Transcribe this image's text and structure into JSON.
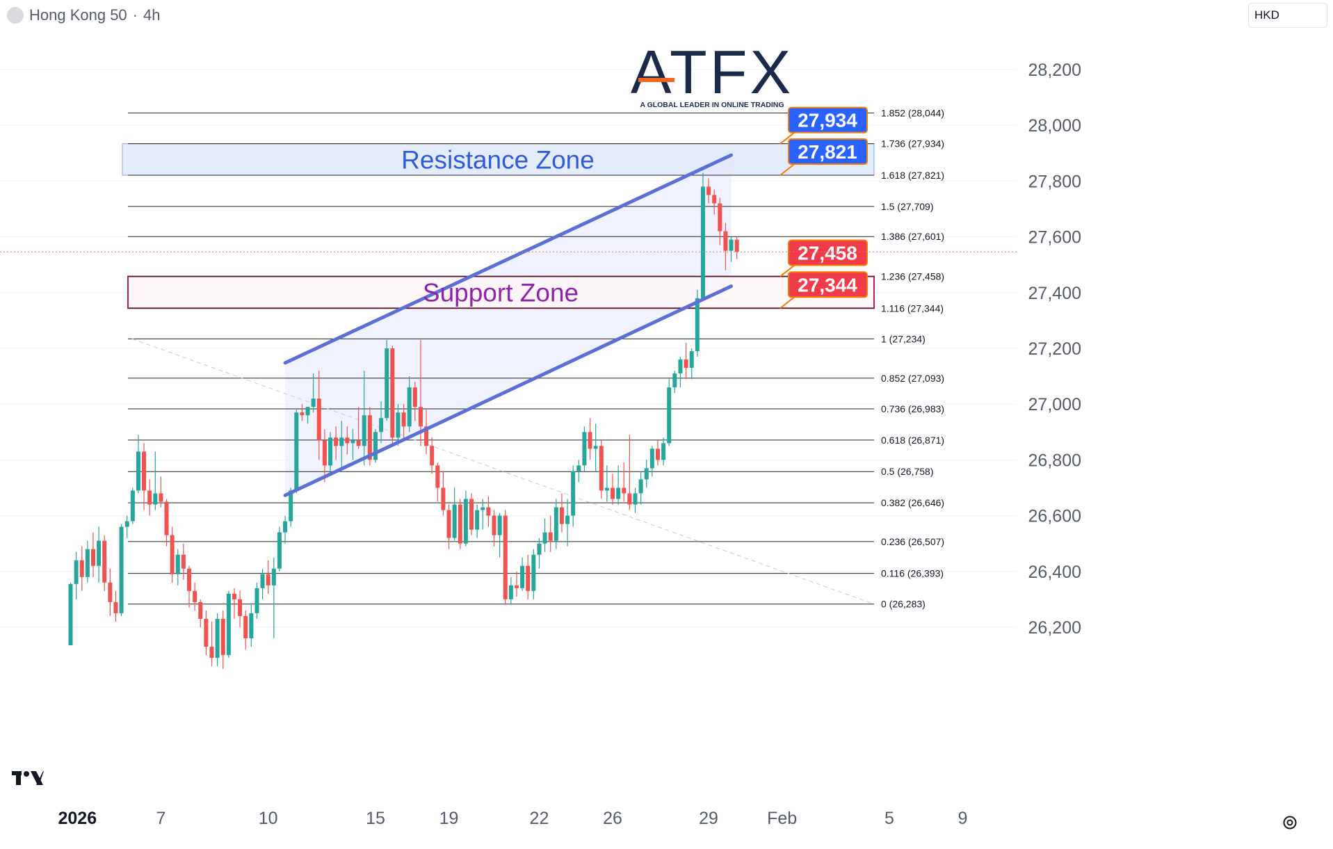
{
  "header": {
    "symbol": "Hong Kong 50",
    "separator": "·",
    "timeframe": "4h",
    "currency": "HKD"
  },
  "logo": {
    "brand": "ATFX",
    "tagline": "A GLOBAL LEADER IN ONLINE TRADING",
    "accent_color": "#f26522",
    "brand_color": "#1c2a4a"
  },
  "colors": {
    "up": "#26a69a",
    "down": "#ef5350",
    "channel": "#5b6fd6",
    "resistance_label": "#2962ff",
    "support_label": "#ef3b4a",
    "label_border": "#f57c00"
  },
  "zones": {
    "resistance_label": "Resistance Zone",
    "support_label": "Support Zone"
  },
  "price_tags": [
    "27,934",
    "27,821",
    "27,458",
    "27,344"
  ],
  "chart_data": {
    "type": "candlestick",
    "title": "Hong Kong 50 · 4h",
    "currency": "HKD",
    "ylim": [
      26100,
      28300
    ],
    "y_ticks": [
      "26,200",
      "26,400",
      "26,600",
      "26,800",
      "27,000",
      "27,200",
      "27,400",
      "27,600",
      "27,800",
      "28,000",
      "28,200"
    ],
    "y_tick_values": [
      26200,
      26400,
      26600,
      26800,
      27000,
      27200,
      27400,
      27600,
      27800,
      28000,
      28200
    ],
    "x_ticks": [
      "2026",
      "7",
      "10",
      "15",
      "19",
      "22",
      "26",
      "29",
      "Feb",
      "5",
      "9"
    ],
    "x_tick_bars": [
      0,
      16,
      35,
      54,
      67,
      83,
      96,
      113,
      126,
      145,
      158
    ],
    "fib_levels": [
      {
        "label": "1.852 (28,044)",
        "value": 28044
      },
      {
        "label": "1.736 (27,934)",
        "value": 27934
      },
      {
        "label": "1.618 (27,821)",
        "value": 27821
      },
      {
        "label": "1.5 (27,709)",
        "value": 27709
      },
      {
        "label": "1.386 (27,601)",
        "value": 27601
      },
      {
        "label": "1.236 (27,458)",
        "value": 27458
      },
      {
        "label": "1.116 (27,344)",
        "value": 27344
      },
      {
        "label": "1 (27,234)",
        "value": 27234
      },
      {
        "label": "0.852 (27,093)",
        "value": 27093
      },
      {
        "label": "0.736 (26,983)",
        "value": 26983
      },
      {
        "label": "0.618 (26,871)",
        "value": 26871
      },
      {
        "label": "0.5 (26,758)",
        "value": 26758
      },
      {
        "label": "0.382 (26,646)",
        "value": 26646
      },
      {
        "label": "0.236 (26,507)",
        "value": 26507
      },
      {
        "label": "0.116 (26,393)",
        "value": 26393
      },
      {
        "label": "0 (26,283)",
        "value": 26283
      }
    ],
    "resistance_zone": [
      27821,
      27934
    ],
    "support_zone": [
      27344,
      27458
    ],
    "channel": {
      "upper": [
        {
          "bar": 38,
          "price": 27148
        },
        {
          "bar": 117,
          "price": 27893
        }
      ],
      "lower": [
        {
          "bar": 38,
          "price": 26673
        },
        {
          "bar": 117,
          "price": 27423
        }
      ]
    },
    "current_price": 27546,
    "candles": [
      [
        26135,
        26360,
        26135,
        26355
      ],
      [
        26355,
        26470,
        26300,
        26440
      ],
      [
        26440,
        26490,
        26330,
        26380
      ],
      [
        26380,
        26510,
        26360,
        26480
      ],
      [
        26480,
        26540,
        26380,
        26420
      ],
      [
        26420,
        26560,
        26360,
        26510
      ],
      [
        26510,
        26530,
        26330,
        26360
      ],
      [
        26360,
        26410,
        26240,
        26290
      ],
      [
        26290,
        26330,
        26220,
        26250
      ],
      [
        26250,
        26570,
        26240,
        26560
      ],
      [
        26560,
        26600,
        26520,
        26580
      ],
      [
        26580,
        26700,
        26570,
        26690
      ],
      [
        26690,
        26890,
        26680,
        26830
      ],
      [
        26830,
        26860,
        26620,
        26690
      ],
      [
        26690,
        26730,
        26600,
        26640
      ],
      [
        26640,
        26830,
        26620,
        26680
      ],
      [
        26680,
        26740,
        26630,
        26650
      ],
      [
        26650,
        26660,
        26490,
        26530
      ],
      [
        26530,
        26560,
        26360,
        26390
      ],
      [
        26390,
        26480,
        26350,
        26460
      ],
      [
        26460,
        26500,
        26370,
        26410
      ],
      [
        26410,
        26420,
        26270,
        26330
      ],
      [
        26330,
        26360,
        26260,
        26290
      ],
      [
        26290,
        26300,
        26200,
        26230
      ],
      [
        26230,
        26260,
        26100,
        26130
      ],
      [
        26130,
        26220,
        26060,
        26090
      ],
      [
        26090,
        26250,
        26060,
        26230
      ],
      [
        26230,
        26260,
        26050,
        26100
      ],
      [
        26100,
        26330,
        26090,
        26320
      ],
      [
        26320,
        26340,
        26230,
        26300
      ],
      [
        26300,
        26330,
        26200,
        26240
      ],
      [
        26240,
        26260,
        26120,
        26160
      ],
      [
        26160,
        26280,
        26130,
        26250
      ],
      [
        26250,
        26360,
        26230,
        26340
      ],
      [
        26340,
        26410,
        26300,
        26390
      ],
      [
        26390,
        26440,
        26320,
        26350
      ],
      [
        26350,
        26450,
        26160,
        26410
      ],
      [
        26410,
        26560,
        26400,
        26540
      ],
      [
        26540,
        26600,
        26500,
        26580
      ],
      [
        26580,
        26700,
        26560,
        26690
      ],
      [
        26690,
        26980,
        26680,
        26970
      ],
      [
        26970,
        27000,
        26940,
        26960
      ],
      [
        26960,
        26990,
        26930,
        26990
      ],
      [
        26990,
        27110,
        26970,
        27020
      ],
      [
        27020,
        27120,
        26800,
        26870
      ],
      [
        26870,
        26910,
        26720,
        26780
      ],
      [
        26780,
        26900,
        26750,
        26880
      ],
      [
        26880,
        26920,
        26800,
        26850
      ],
      [
        26850,
        26940,
        26770,
        26880
      ],
      [
        26880,
        26920,
        26820,
        26860
      ],
      [
        26860,
        26910,
        26800,
        26870
      ],
      [
        26870,
        26990,
        26840,
        26850
      ],
      [
        26850,
        27120,
        26780,
        26960
      ],
      [
        26960,
        26990,
        26780,
        26800
      ],
      [
        26800,
        26910,
        26790,
        26900
      ],
      [
        26900,
        27010,
        26860,
        26950
      ],
      [
        26950,
        27230,
        26940,
        27200
      ],
      [
        27200,
        27210,
        26860,
        26880
      ],
      [
        26880,
        27000,
        26850,
        26970
      ],
      [
        26970,
        27000,
        26870,
        26920
      ],
      [
        26920,
        27100,
        26900,
        27060
      ],
      [
        27060,
        27080,
        26940,
        26990
      ],
      [
        26990,
        27230,
        26850,
        26920
      ],
      [
        26920,
        26980,
        26820,
        26850
      ],
      [
        26850,
        26880,
        26750,
        26780
      ],
      [
        26780,
        26790,
        26650,
        26700
      ],
      [
        26700,
        26760,
        26600,
        26620
      ],
      [
        26620,
        26640,
        26480,
        26520
      ],
      [
        26520,
        26700,
        26510,
        26640
      ],
      [
        26640,
        26660,
        26480,
        26500
      ],
      [
        26500,
        26690,
        26490,
        26660
      ],
      [
        26660,
        26680,
        26530,
        26550
      ],
      [
        26550,
        26640,
        26520,
        26620
      ],
      [
        26620,
        26660,
        26550,
        26630
      ],
      [
        26630,
        26670,
        26560,
        26600
      ],
      [
        26600,
        26620,
        26490,
        26530
      ],
      [
        26530,
        26610,
        26450,
        26600
      ],
      [
        26600,
        26620,
        26280,
        26300
      ],
      [
        26300,
        26380,
        26280,
        26350
      ],
      [
        26350,
        26400,
        26310,
        26340
      ],
      [
        26340,
        26450,
        26330,
        26420
      ],
      [
        26420,
        26460,
        26300,
        26330
      ],
      [
        26330,
        26480,
        26300,
        26460
      ],
      [
        26460,
        26520,
        26410,
        26500
      ],
      [
        26500,
        26590,
        26470,
        26540
      ],
      [
        26540,
        26600,
        26470,
        26510
      ],
      [
        26510,
        26660,
        26480,
        26630
      ],
      [
        26630,
        26680,
        26540,
        26570
      ],
      [
        26570,
        26660,
        26490,
        26600
      ],
      [
        26600,
        26780,
        26560,
        26760
      ],
      [
        26760,
        26800,
        26720,
        26780
      ],
      [
        26780,
        26920,
        26760,
        26900
      ],
      [
        26900,
        26950,
        26800,
        26840
      ],
      [
        26840,
        26930,
        26760,
        26850
      ],
      [
        26850,
        26870,
        26660,
        26690
      ],
      [
        26690,
        26780,
        26650,
        26700
      ],
      [
        26700,
        26750,
        26640,
        26660
      ],
      [
        26660,
        26780,
        26640,
        26700
      ],
      [
        26700,
        26790,
        26650,
        26680
      ],
      [
        26680,
        26890,
        26620,
        26640
      ],
      [
        26640,
        26700,
        26610,
        26680
      ],
      [
        26680,
        26760,
        26640,
        26730
      ],
      [
        26730,
        26800,
        26700,
        26770
      ],
      [
        26770,
        26850,
        26740,
        26840
      ],
      [
        26840,
        26870,
        26780,
        26800
      ],
      [
        26800,
        26880,
        26780,
        26860
      ],
      [
        26860,
        27090,
        26850,
        27060
      ],
      [
        27060,
        27120,
        27040,
        27110
      ],
      [
        27110,
        27170,
        27060,
        27160
      ],
      [
        27160,
        27220,
        27090,
        27130
      ],
      [
        27130,
        27200,
        27090,
        27190
      ],
      [
        27190,
        27410,
        27170,
        27380
      ],
      [
        27380,
        27830,
        27370,
        27780
      ],
      [
        27780,
        27810,
        27720,
        27750
      ],
      [
        27750,
        27770,
        27680,
        27720
      ],
      [
        27720,
        27740,
        27570,
        27620
      ],
      [
        27620,
        27650,
        27480,
        27550
      ],
      [
        27550,
        27600,
        27510,
        27590
      ],
      [
        27590,
        27600,
        27520,
        27546
      ]
    ]
  }
}
